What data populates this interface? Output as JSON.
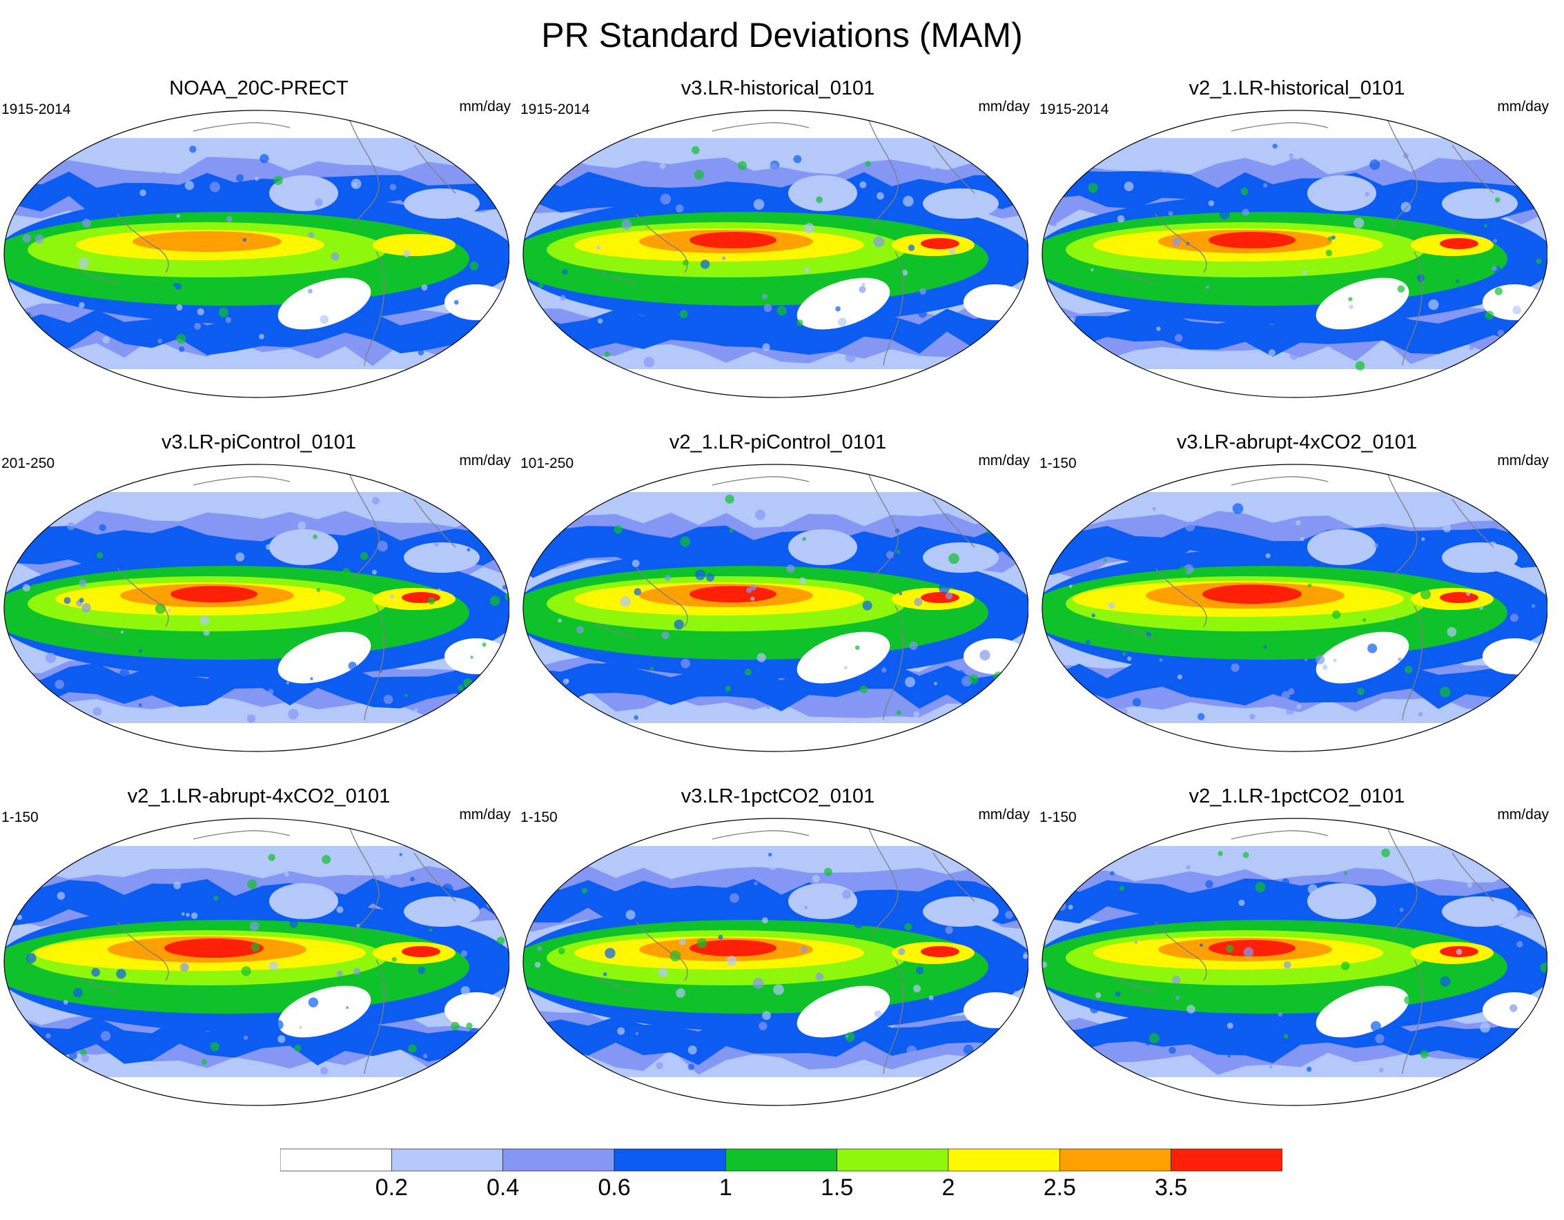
{
  "title": "PR Standard Deviations (MAM)",
  "chart_data": {
    "type": "heatmap",
    "title": "PR Standard Deviations (MAM)",
    "variable": "PR",
    "projection": "Robinson (global map)",
    "colorbar": {
      "levels": [
        "0.2",
        "0.4",
        "0.6",
        "1",
        "1.5",
        "2",
        "2.5",
        "3.5"
      ],
      "colors": [
        "#ffffff",
        "#b4c8fa",
        "#8497f5",
        "#0c5cf2",
        "#10c22a",
        "#8ef70b",
        "#fff700",
        "#ff9f00",
        "#ff2007"
      ]
    },
    "panels": [
      {
        "title": "NOAA_20C-PRECT",
        "period": "1915-2014",
        "units": "mm/day",
        "intensity": 2
      },
      {
        "title": "v3.LR-historical_0101",
        "period": "1915-2014",
        "units": "mm/day",
        "intensity": 3
      },
      {
        "title": "v2_1.LR-historical_0101",
        "period": "1915-2014",
        "units": "mm/day",
        "intensity": 3
      },
      {
        "title": "v3.LR-piControl_0101",
        "period": "201-250",
        "units": "mm/day",
        "intensity": 3
      },
      {
        "title": "v2_1.LR-piControl_0101",
        "period": "101-250",
        "units": "mm/day",
        "intensity": 3
      },
      {
        "title": "v3.LR-abrupt-4xCO2_0101",
        "period": "1-150",
        "units": "mm/day",
        "intensity": 4
      },
      {
        "title": "v2_1.LR-abrupt-4xCO2_0101",
        "period": "1-150",
        "units": "mm/day",
        "intensity": 4
      },
      {
        "title": "v3.LR-1pctCO2_0101",
        "period": "1-150",
        "units": "mm/day",
        "intensity": 3
      },
      {
        "title": "v2_1.LR-1pctCO2_0101",
        "period": "1-150",
        "units": "mm/day",
        "intensity": 3
      }
    ]
  }
}
